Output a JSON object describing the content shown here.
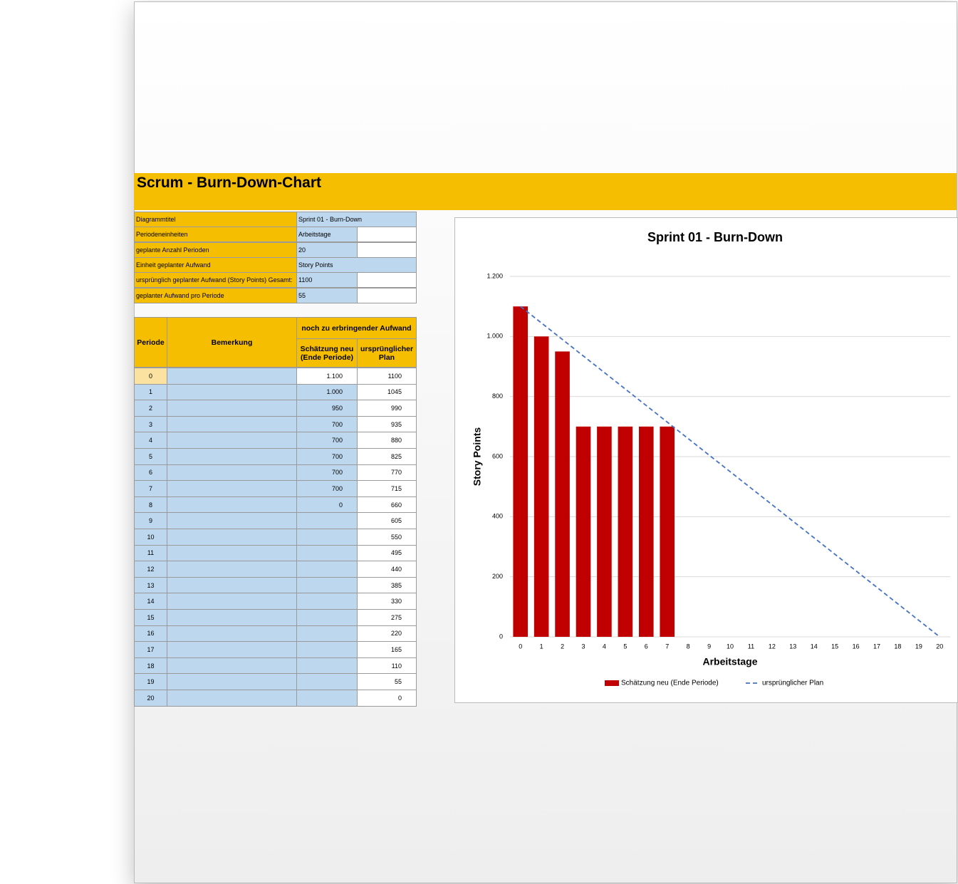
{
  "header": {
    "title": "Scrum - Burn-Down-Chart"
  },
  "settings": {
    "rows": [
      [
        "Diagrammtitel",
        "Sprint 01 - Burn-Down"
      ],
      [
        "Periodeneinheiten",
        "Arbeitstage"
      ],
      [
        "geplante Anzahl Perioden",
        "20"
      ],
      [
        "Einheit geplanter Aufwand",
        "Story Points"
      ],
      [
        "ursprünglich geplanter Aufwand (Story Points) Gesamt:",
        "1100"
      ],
      [
        "geplanter Aufwand pro Periode",
        "55"
      ]
    ]
  },
  "table": {
    "headers": {
      "period": "Periode",
      "remark": "Bemerkung",
      "group": "noch zu erbringender Aufwand",
      "estimate": "Schätzung neu (Ende Periode)",
      "plan": "ursprünglicher Plan"
    },
    "rows": [
      [
        "0",
        "1.100",
        "1100"
      ],
      [
        "1",
        "1.000",
        "1045"
      ],
      [
        "2",
        "950",
        "990"
      ],
      [
        "3",
        "700",
        "935"
      ],
      [
        "4",
        "700",
        "880"
      ],
      [
        "5",
        "700",
        "825"
      ],
      [
        "6",
        "700",
        "770"
      ],
      [
        "7",
        "700",
        "715"
      ],
      [
        "8",
        "0",
        "660"
      ],
      [
        "9",
        null,
        "605"
      ],
      [
        "10",
        null,
        "550"
      ],
      [
        "11",
        null,
        "495"
      ],
      [
        "12",
        null,
        "440"
      ],
      [
        "13",
        null,
        "385"
      ],
      [
        "14",
        null,
        "330"
      ],
      [
        "15",
        null,
        "275"
      ],
      [
        "16",
        null,
        "220"
      ],
      [
        "17",
        null,
        "165"
      ],
      [
        "18",
        null,
        "110"
      ],
      [
        "19",
        null,
        "55"
      ],
      [
        "20",
        null,
        "0"
      ]
    ]
  },
  "chart_data": {
    "type": "bar",
    "title": "Sprint 01 - Burn-Down",
    "x_label": "Arbeitstage",
    "y_label": "Story Points",
    "categories": [
      "0",
      "1",
      "2",
      "3",
      "4",
      "5",
      "6",
      "7",
      "8",
      "9",
      "10",
      "11",
      "12",
      "13",
      "14",
      "15",
      "16",
      "17",
      "18",
      "19",
      "20"
    ],
    "series": [
      {
        "name": "Schätzung neu (Ende Periode)",
        "type": "bar",
        "color": "#c00000",
        "values": [
          1100,
          1000,
          950,
          700,
          700,
          700,
          700,
          700,
          0,
          null,
          null,
          null,
          null,
          null,
          null,
          null,
          null,
          null,
          null,
          null,
          null
        ]
      },
      {
        "name": "ursprünglicher Plan",
        "type": "line",
        "color": "#4472c4",
        "dashed": true,
        "values": [
          1100,
          1045,
          990,
          935,
          880,
          825,
          770,
          715,
          660,
          605,
          550,
          495,
          440,
          385,
          330,
          275,
          220,
          165,
          110,
          55,
          0
        ]
      }
    ],
    "ylim": [
      0,
      1200
    ],
    "yticks": [
      0,
      200,
      400,
      600,
      800,
      {
        "value": 1000,
        "label": "1.000"
      },
      {
        "value": 1200,
        "label": "1.200"
      }
    ],
    "grid": true,
    "legend": "bottom"
  }
}
